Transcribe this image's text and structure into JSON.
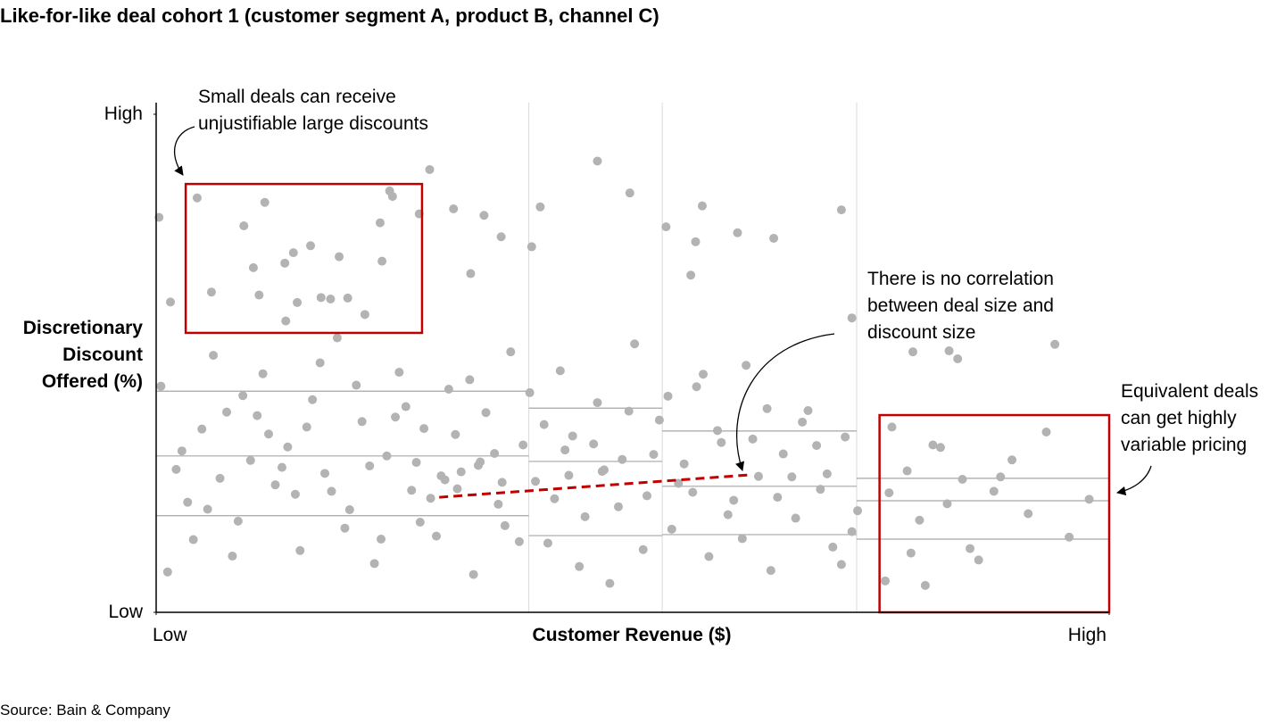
{
  "chart_data": {
    "type": "scatter",
    "title": "Like-for-like deal cohort 1 (customer segment A, product B, channel C)",
    "x_label": "Customer Revenue ($)",
    "y_label": "Discretionary Discount Offered (%)",
    "xlim": [
      0,
      100
    ],
    "ylim": [
      0,
      100
    ],
    "xticks": [
      {
        "value": 0,
        "label": "Low"
      },
      {
        "value": 100,
        "label": "High"
      }
    ],
    "yticks": [
      {
        "value": 0,
        "label": "Low"
      },
      {
        "value": 100,
        "label": "High"
      }
    ],
    "color": "#b3b3b3",
    "x": [
      4.3,
      9.2,
      11.4,
      14.4,
      16.2,
      19.2,
      23.5,
      24.5,
      24.8,
      5.8,
      10.2,
      13.5,
      17.3,
      20.1,
      23.7,
      10.8,
      13.6,
      14.8,
      18.3,
      21.9,
      0.3,
      1.5,
      28.7,
      27.6,
      31.2,
      33.0,
      34.4,
      36.2,
      39.4,
      40.3,
      46.3,
      49.7,
      53.5,
      56.6,
      61.0,
      64.8,
      57.3,
      56.1,
      71.9,
      73.0,
      79.4,
      84.1,
      83.2,
      94.3,
      0.5,
      2.1,
      3.3,
      4.8,
      6.0,
      7.4,
      8.6,
      9.9,
      11.2,
      12.5,
      13.8,
      15.1,
      16.4,
      17.7,
      19.0,
      20.3,
      21.6,
      22.9,
      24.2,
      25.5,
      26.8,
      28.1,
      29.4,
      30.7,
      32.0,
      33.3,
      34.6,
      35.9,
      37.2,
      38.5,
      39.8,
      41.1,
      42.4,
      43.7,
      45.0,
      46.3,
      47.6,
      48.9,
      50.2,
      51.5,
      52.8,
      54.1,
      55.4,
      56.7,
      58.0,
      59.3,
      60.6,
      61.9,
      63.2,
      64.5,
      65.8,
      67.1,
      68.4,
      69.7,
      71.0,
      72.3,
      73.6,
      1.2,
      3.9,
      6.7,
      9.1,
      11.8,
      14.6,
      17.2,
      19.8,
      22.4,
      25.1,
      27.7,
      30.3,
      32.9,
      35.5,
      38.1,
      40.7,
      43.3,
      45.9,
      48.5,
      51.1,
      53.7,
      56.3,
      58.9,
      61.5,
      64.1,
      66.7,
      69.3,
      71.9,
      2.7,
      5.4,
      8.0,
      10.6,
      13.2,
      15.8,
      18.4,
      21.0,
      23.6,
      26.2,
      28.8,
      31.4,
      34.0,
      36.6,
      39.2,
      41.8,
      44.4,
      47.0,
      49.6,
      52.2,
      54.8,
      57.4,
      60.0,
      62.6,
      65.2,
      67.8,
      70.4,
      73.0,
      27.3,
      29.9,
      31.6,
      33.8,
      36.3,
      42.9,
      46.8,
      77.2,
      78.8,
      80.1,
      81.5,
      83.0,
      84.6,
      86.3,
      87.9,
      89.8,
      91.5,
      93.4,
      95.8,
      97.9,
      76.5,
      79.2,
      82.3,
      85.4,
      88.6,
      76.9,
      80.7
    ],
    "values": [
      83.2,
      77.6,
      82.3,
      72.2,
      73.6,
      71.4,
      78.2,
      84.6,
      83.5,
      64.3,
      69.2,
      70.1,
      63.2,
      63.1,
      70.5,
      63.7,
      58.5,
      62.2,
      62.9,
      59.8,
      79.3,
      62.3,
      88.9,
      80.0,
      81.0,
      68.0,
      79.7,
      75.4,
      73.4,
      81.4,
      90.6,
      84.2,
      77.4,
      74.4,
      76.2,
      75.1,
      81.6,
      67.7,
      80.8,
      59.1,
      52.3,
      50.9,
      52.5,
      53.8,
      45.4,
      28.7,
      22.1,
      36.8,
      51.6,
      40.2,
      18.3,
      30.5,
      47.9,
      25.6,
      33.2,
      12.4,
      42.7,
      27.9,
      55.1,
      20.6,
      38.3,
      9.8,
      31.4,
      48.2,
      24.5,
      36.9,
      15.3,
      44.8,
      28.2,
      7.6,
      40.1,
      21.7,
      52.3,
      33.6,
      26.3,
      13.9,
      48.5,
      35.4,
      19.2,
      42.1,
      5.8,
      30.7,
      53.9,
      23.4,
      38.6,
      16.7,
      29.8,
      45.3,
      11.2,
      34.1,
      22.5,
      49.6,
      27.3,
      8.4,
      31.8,
      18.9,
      40.5,
      24.7,
      13.1,
      35.2,
      20.4,
      8.1,
      14.6,
      26.9,
      43.5,
      35.8,
      23.7,
      50.1,
      16.9,
      29.4,
      39.2,
      18.1,
      26.6,
      46.7,
      31.9,
      14.2,
      37.7,
      27.5,
      33.8,
      21.2,
      12.6,
      43.4,
      24.1,
      36.5,
      14.8,
      40.9,
      27.2,
      33.5,
      9.6,
      32.4,
      20.7,
      11.3,
      39.5,
      29.1,
      37.2,
      24.3,
      45.6,
      14.7,
      41.3,
      22.9,
      35.7,
      30.2,
      17.4,
      44.1,
      22.8,
      9.2,
      28.6,
      40.4,
      31.7,
      25.9,
      47.8,
      19.6,
      34.8,
      23.1,
      38.2,
      27.8,
      16.2,
      30.1,
      27.4,
      24.8,
      29.5,
      26.1,
      32.6,
      28.3,
      37.2,
      28.4,
      18.5,
      33.6,
      21.8,
      26.7,
      10.5,
      24.3,
      30.6,
      19.8,
      36.2,
      15.1,
      22.7,
      6.3,
      11.9,
      33.1,
      12.8,
      27.2,
      24.0,
      5.4
    ],
    "segment_boundaries": [
      39.1,
      53.1,
      73.5
    ],
    "segment_quartiles": [
      [
        44.4,
        31.4,
        19.4
      ],
      [
        41.0,
        30.3,
        15.4
      ],
      [
        36.4,
        25.3,
        15.6
      ],
      [
        26.9,
        22.4,
        14.7
      ]
    ],
    "highlight_color": "#c00000",
    "highlight_boxes": [
      {
        "x": [
          3.1,
          27.9
        ],
        "y": [
          56.1,
          86.0
        ]
      },
      {
        "x": [
          75.9,
          100
        ],
        "y": [
          0,
          39.6
        ]
      }
    ],
    "trend_line": {
      "x": [
        29.7,
        62.3
      ],
      "y": [
        23.1,
        27.6
      ]
    },
    "annotations": [
      "Small deals can receive unjustifiable large discounts",
      "There is no correlation between deal size and discount size",
      "Equivalent deals can get highly variable pricing"
    ],
    "source": "Source: Bain & Company"
  }
}
